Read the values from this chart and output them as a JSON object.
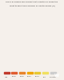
{
  "title_line1": "Share of people who would trust a doctor or nurse the",
  "title_line2": "most to give them medical or health advice (%)",
  "legend_colors": [
    "#c0392b",
    "#e05c30",
    "#e8832a",
    "#f0a500",
    "#e8c830",
    "#f0e060",
    "#cccccc"
  ],
  "legend_labels": [
    "<40",
    "40-49",
    "50-59",
    "60-69",
    "70-79",
    "80+",
    "No data"
  ],
  "background_color": "#f5f0eb",
  "watermark_bg": "#1a3a5c",
  "watermark_text": "W",
  "country_colors": {
    "Mauritania": "#e8832a",
    "Senegal": "#e8832a",
    "Gambia": "#e8832a",
    "Guinea-Bissau": "#e05c30",
    "Guinea": "#e05c30",
    "Sierra Leone": "#e8832a",
    "Liberia": "#e05c30",
    "Mali": "#c0392b",
    "Burkina Faso": "#e05c30",
    "Ghana": "#e8832a",
    "Togo": "#e8832a",
    "Benin": "#e8832a",
    "Nigeria": "#c0392b",
    "Niger": "#e8832a",
    "Chad": "#e05c30",
    "Cameroon": "#e05c30",
    "Central African Republic": "#e05c30",
    "Equatorial Guinea": "#cccccc",
    "Gabon": "#cccccc",
    "Republic of Congo": "#e8832a",
    "Democratic Republic of Congo": "#c0392b",
    "South Sudan": "#e8832a",
    "Sudan": "#cccccc",
    "Ethiopia": "#e05c30",
    "Eritrea": "#cccccc",
    "Djibouti": "#cccccc",
    "Somalia": "#cccccc",
    "Uganda": "#e05c30",
    "Rwanda": "#f0a500",
    "Burundi": "#c0392b",
    "Kenya": "#f0a500",
    "Tanzania": "#e8832a",
    "Angola": "#e05c30",
    "Zambia": "#f0a500",
    "Malawi": "#e8832a",
    "Mozambique": "#f0a500",
    "Zimbabwe": "#e8832a",
    "Botswana": "#e8c830",
    "Namibia": "#cccccc",
    "South Africa": "#cccccc",
    "Lesotho": "#cccccc",
    "Eswatini": "#cccccc",
    "Madagascar": "#e05c30",
    "Morocco": "#cccccc",
    "Algeria": "#cccccc",
    "Tunisia": "#f0e060",
    "Libya": "#cccccc",
    "Egypt": "#cccccc"
  }
}
